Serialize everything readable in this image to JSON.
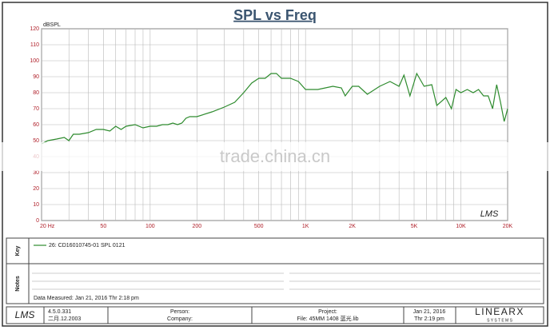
{
  "chart_data": {
    "type": "line",
    "title": "SPL vs Freq",
    "y_label": "dBSPL",
    "log_x": true,
    "grid": true,
    "xlim": [
      20,
      20000
    ],
    "ylim": [
      0,
      120
    ],
    "yticks": [
      0,
      10,
      20,
      30,
      40,
      50,
      60,
      70,
      80,
      90,
      100,
      110,
      120
    ],
    "xticks": [
      {
        "value": 20,
        "label": "20 Hz"
      },
      50,
      100,
      200,
      500,
      {
        "value": 1000,
        "label": "1K"
      },
      {
        "value": 2000,
        "label": "2K"
      },
      {
        "value": 5000,
        "label": "5K"
      },
      {
        "value": 10000,
        "label": "10K"
      },
      {
        "value": 20000,
        "label": "20K"
      }
    ],
    "xminorticks": [
      30,
      40,
      60,
      70,
      80,
      90,
      300,
      400,
      600,
      700,
      800,
      900,
      3000,
      4000,
      6000,
      7000,
      8000,
      9000
    ],
    "x": [
      20,
      22,
      25,
      28,
      30,
      32,
      35,
      40,
      45,
      50,
      55,
      60,
      65,
      70,
      80,
      90,
      100,
      110,
      120,
      130,
      140,
      150,
      160,
      170,
      180,
      200,
      250,
      300,
      350,
      400,
      450,
      500,
      550,
      600,
      650,
      700,
      800,
      900,
      1000,
      1100,
      1200,
      1500,
      1700,
      1800,
      2000,
      2200,
      2500,
      3000,
      3500,
      4000,
      4300,
      4700,
      5200,
      5800,
      6500,
      7000,
      8000,
      8700,
      9300,
      10000,
      11000,
      12000,
      13000,
      14000,
      15000,
      16000,
      17000,
      18000,
      19000,
      19500,
      20000
    ],
    "series": [
      {
        "name": "26: CD16010745-01 SPL 0121",
        "color": "#2e8b2e",
        "values": [
          48,
          50,
          51,
          52,
          50,
          54,
          54,
          55,
          57,
          57,
          56,
          59,
          57,
          59,
          60,
          58,
          59,
          59,
          60,
          60,
          61,
          60,
          61,
          64,
          65,
          65,
          68,
          71,
          74,
          80,
          86,
          89,
          89,
          92,
          92,
          89,
          89,
          87,
          82,
          82,
          82,
          84,
          83,
          78,
          84,
          84,
          79,
          84,
          87,
          84,
          91,
          78,
          92,
          84,
          85,
          72,
          77,
          70,
          82,
          80,
          82,
          80,
          82,
          78,
          78,
          70,
          85,
          74,
          62,
          66,
          70
        ]
      }
    ]
  },
  "plot_logo": "LMS",
  "watermark": "trade.china.cn",
  "key_label": "Key",
  "notes_label": "Notes",
  "data_measured": "Data Measured: Jan 21, 2016  Thr  2:18 pm",
  "footer": {
    "logo": "LMS",
    "version": "4.5.0.331",
    "build_date": "二月.12.2003",
    "person": "Person:",
    "company": "Company:",
    "project": "Project:",
    "file": "File: 45MM  1408 蓝光.lib",
    "date": "Jan 21, 2016",
    "time": "Thr  2:19 pm",
    "brand": "LINEARX",
    "brand_sub": "S Y S T E M S"
  }
}
